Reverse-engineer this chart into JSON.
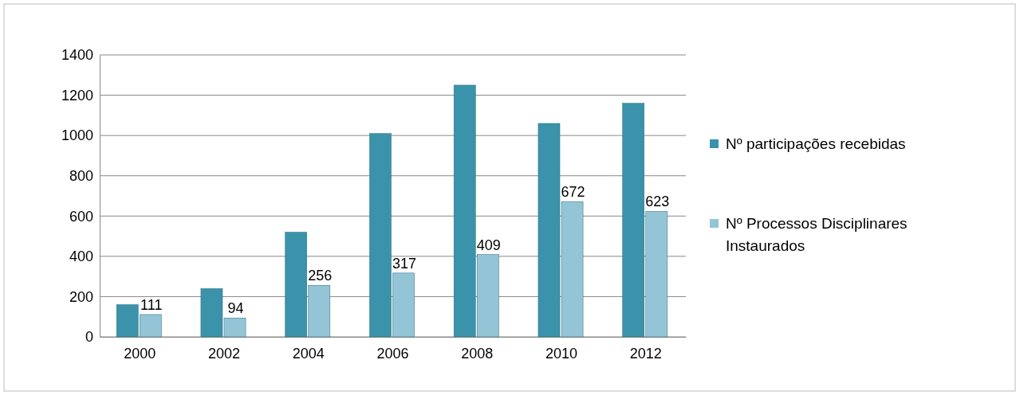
{
  "chart_data": {
    "type": "bar",
    "categories": [
      "2000",
      "2002",
      "2004",
      "2006",
      "2008",
      "2010",
      "2012"
    ],
    "series": [
      {
        "name": "Nº participações recebidas",
        "color": "#3a93aa",
        "values": [
          160,
          240,
          520,
          1010,
          1250,
          1060,
          1160
        ]
      },
      {
        "name": "Nº Processos Disciplinares Instaurados",
        "color": "#93c5d7",
        "values": [
          111,
          94,
          256,
          317,
          409,
          672,
          623
        ],
        "value_labels": [
          "111",
          "94",
          "256",
          "317",
          "409",
          "672",
          "623"
        ]
      }
    ],
    "ylim": [
      0,
      1400
    ],
    "yticks": [
      0,
      200,
      400,
      600,
      800,
      1000,
      1200,
      1400
    ],
    "grid": "y",
    "legend": "right"
  }
}
